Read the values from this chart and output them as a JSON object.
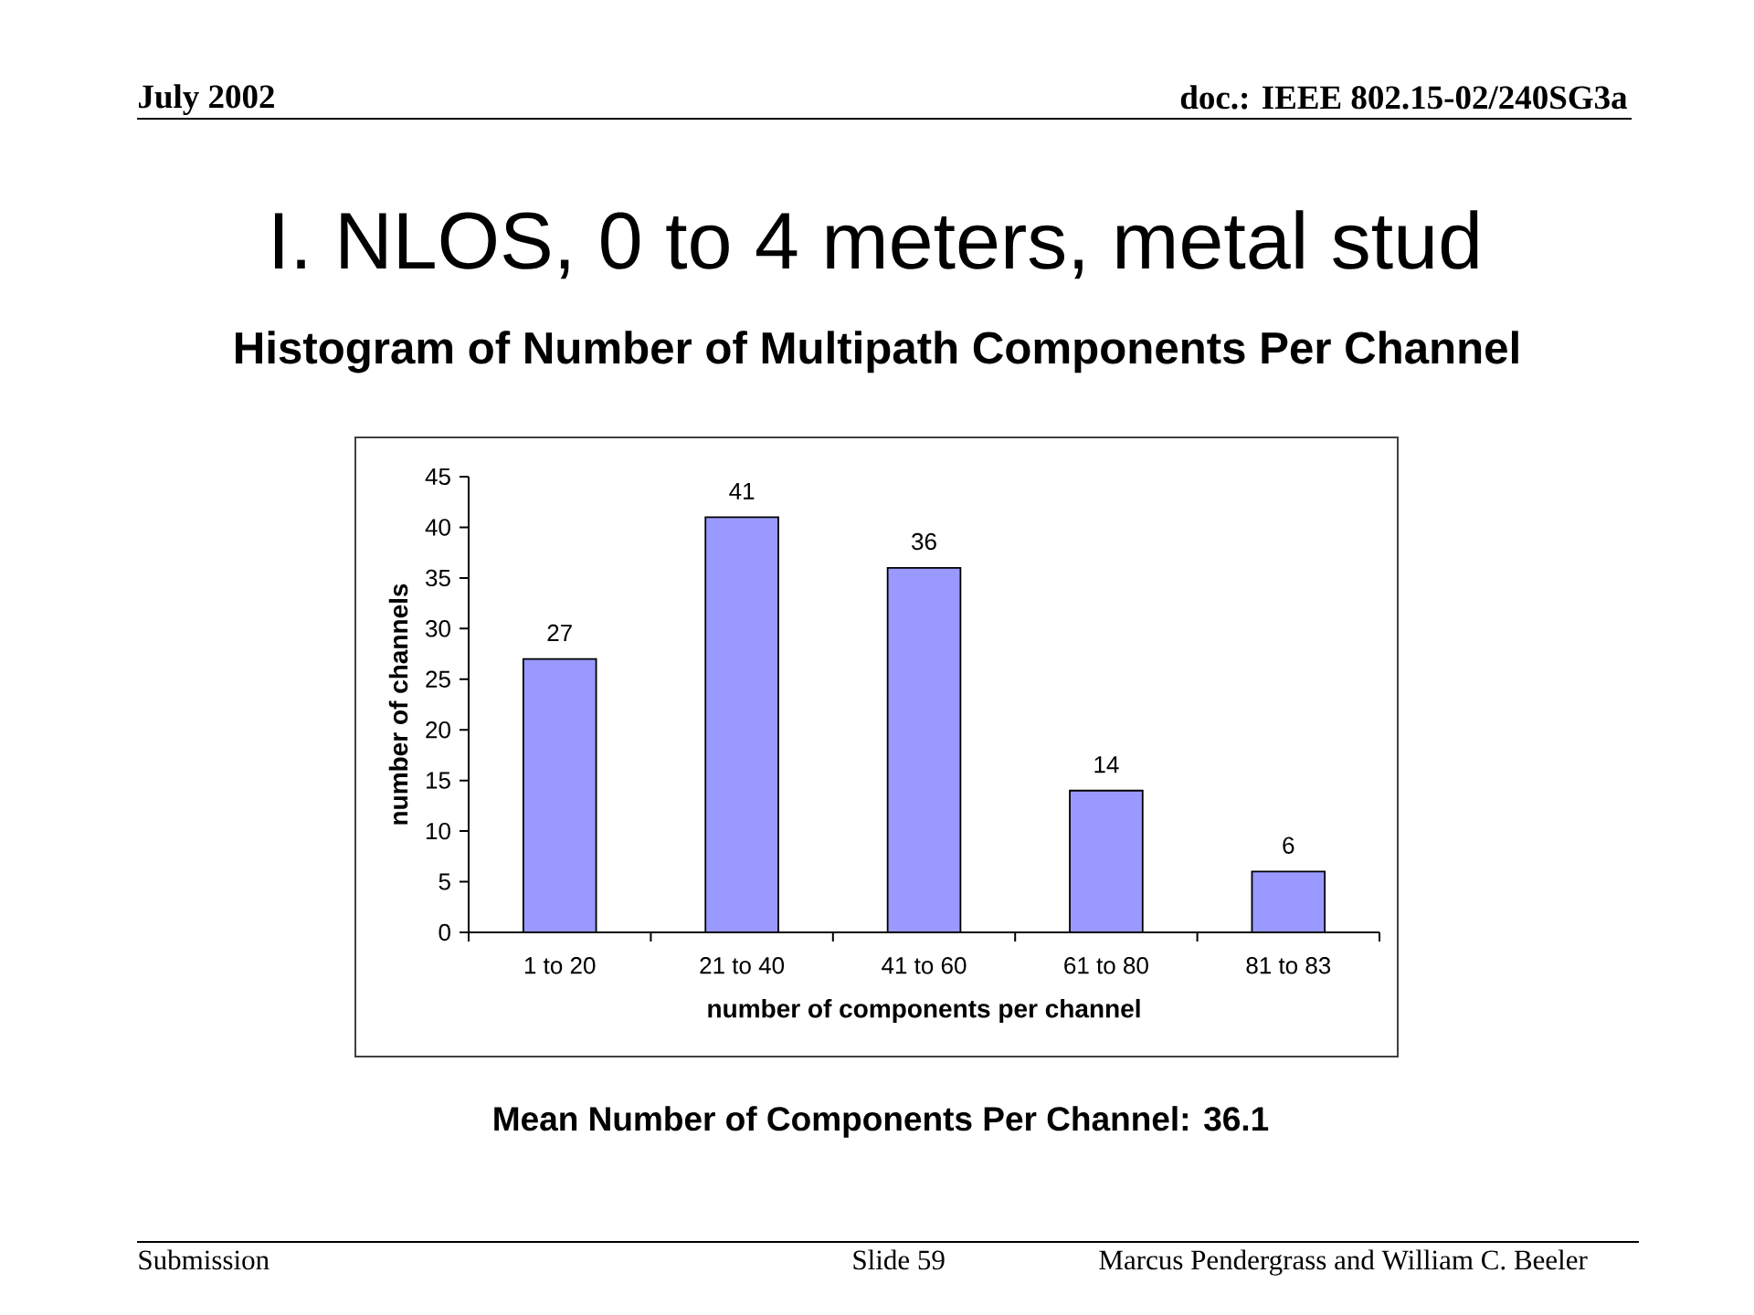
{
  "chart_data": {
    "type": "bar",
    "title": "I. NLOS, 0 to 4 meters, metal stud",
    "subtitle": "Histogram of Number of Multipath Components Per Channel",
    "xlabel": "number of components per channel",
    "ylabel": "number of channels",
    "categories": [
      "1 to 20",
      "21 to 40",
      "41 to 60",
      "61 to 80",
      "81 to 83"
    ],
    "values": [
      27,
      41,
      36,
      14,
      6
    ],
    "color": "#9999ff",
    "ylim": [
      0,
      45
    ],
    "yticks": [
      0,
      5,
      10,
      15,
      20,
      25,
      30,
      35,
      40,
      45
    ],
    "data_labels": true,
    "annotations": [
      "Mean Number of Components Per Channel: 36.1",
      "July 2002",
      "doc.: IEEE 802.15-02/240SG3a",
      "Submission",
      "Slide 59",
      "Marcus Pendergrass and William C. Beeler"
    ]
  }
}
